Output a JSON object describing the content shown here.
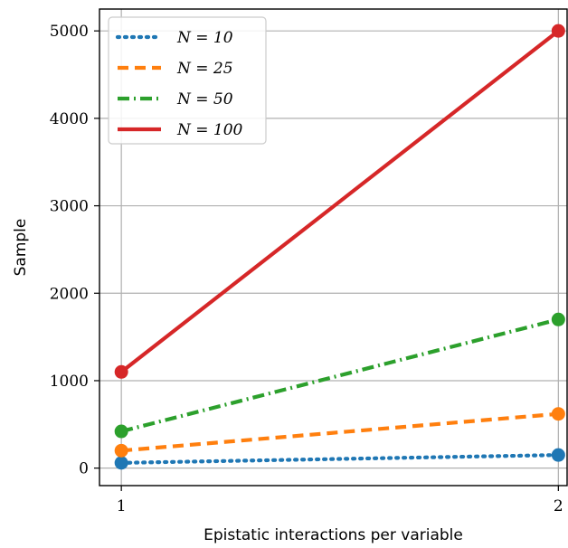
{
  "chart_data": {
    "type": "line",
    "title": "",
    "xlabel": "Epistatic interactions per variable",
    "ylabel": "Sample",
    "x": [
      1,
      2
    ],
    "xticks": [
      "1",
      "2"
    ],
    "yticks": [
      "0",
      "1000",
      "2000",
      "3000",
      "4000",
      "5000"
    ],
    "xlim": [
      0.95,
      2.02
    ],
    "ylim": [
      -200,
      5250
    ],
    "grid": true,
    "legend_position": "top-left",
    "series": [
      {
        "name": "N = 10",
        "values": [
          60,
          150
        ],
        "color": "#1f77b4",
        "style": "dotted"
      },
      {
        "name": "N = 25",
        "values": [
          200,
          620
        ],
        "color": "#ff7f0e",
        "style": "dashed"
      },
      {
        "name": "N = 50",
        "values": [
          420,
          1700
        ],
        "color": "#2ca02c",
        "style": "dashdot"
      },
      {
        "name": "N = 100",
        "values": [
          1100,
          5000
        ],
        "color": "#d62728",
        "style": "solid"
      }
    ]
  }
}
